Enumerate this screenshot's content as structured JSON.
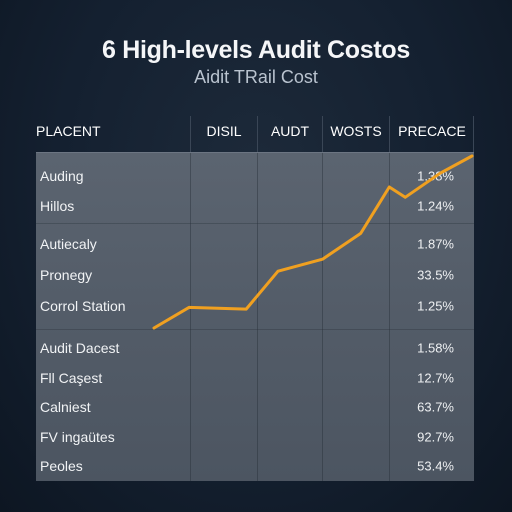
{
  "chart_data": {
    "type": "table",
    "title": "6 High-levels Audit Costos",
    "subtitle": "Aidit TRail Cost",
    "columns": [
      "PLACENT",
      "DISIL",
      "AUDT",
      "WOSTS",
      "PRECACE"
    ],
    "rows": [
      {
        "label": "Auding",
        "value": "1.38%"
      },
      {
        "label": "Hillos",
        "value": "1.24%"
      },
      {
        "label": "Autiecaly",
        "value": "1.87%"
      },
      {
        "label": "Pronegy",
        "value": "33.5%"
      },
      {
        "label": "Corrol Station",
        "value": "1.25%"
      },
      {
        "label": "Audit Dacest",
        "value": "1.58%"
      },
      {
        "label": "Fll Caşest",
        "value": "12.7%"
      },
      {
        "label": "Calniest",
        "value": "63.7%"
      },
      {
        "label": "FV ingaütes",
        "value": "92.7%"
      },
      {
        "label": "Peoles",
        "value": "53.4%"
      }
    ],
    "line_color": "#f0a020",
    "line_points": [
      {
        "x": 0.0,
        "y": 0.0
      },
      {
        "x": 0.11,
        "y": 0.12
      },
      {
        "x": 0.29,
        "y": 0.11
      },
      {
        "x": 0.39,
        "y": 0.33
      },
      {
        "x": 0.53,
        "y": 0.4
      },
      {
        "x": 0.65,
        "y": 0.55
      },
      {
        "x": 0.74,
        "y": 0.82
      },
      {
        "x": 0.79,
        "y": 0.76
      },
      {
        "x": 0.9,
        "y": 0.9
      },
      {
        "x": 1.0,
        "y": 1.0
      }
    ]
  }
}
